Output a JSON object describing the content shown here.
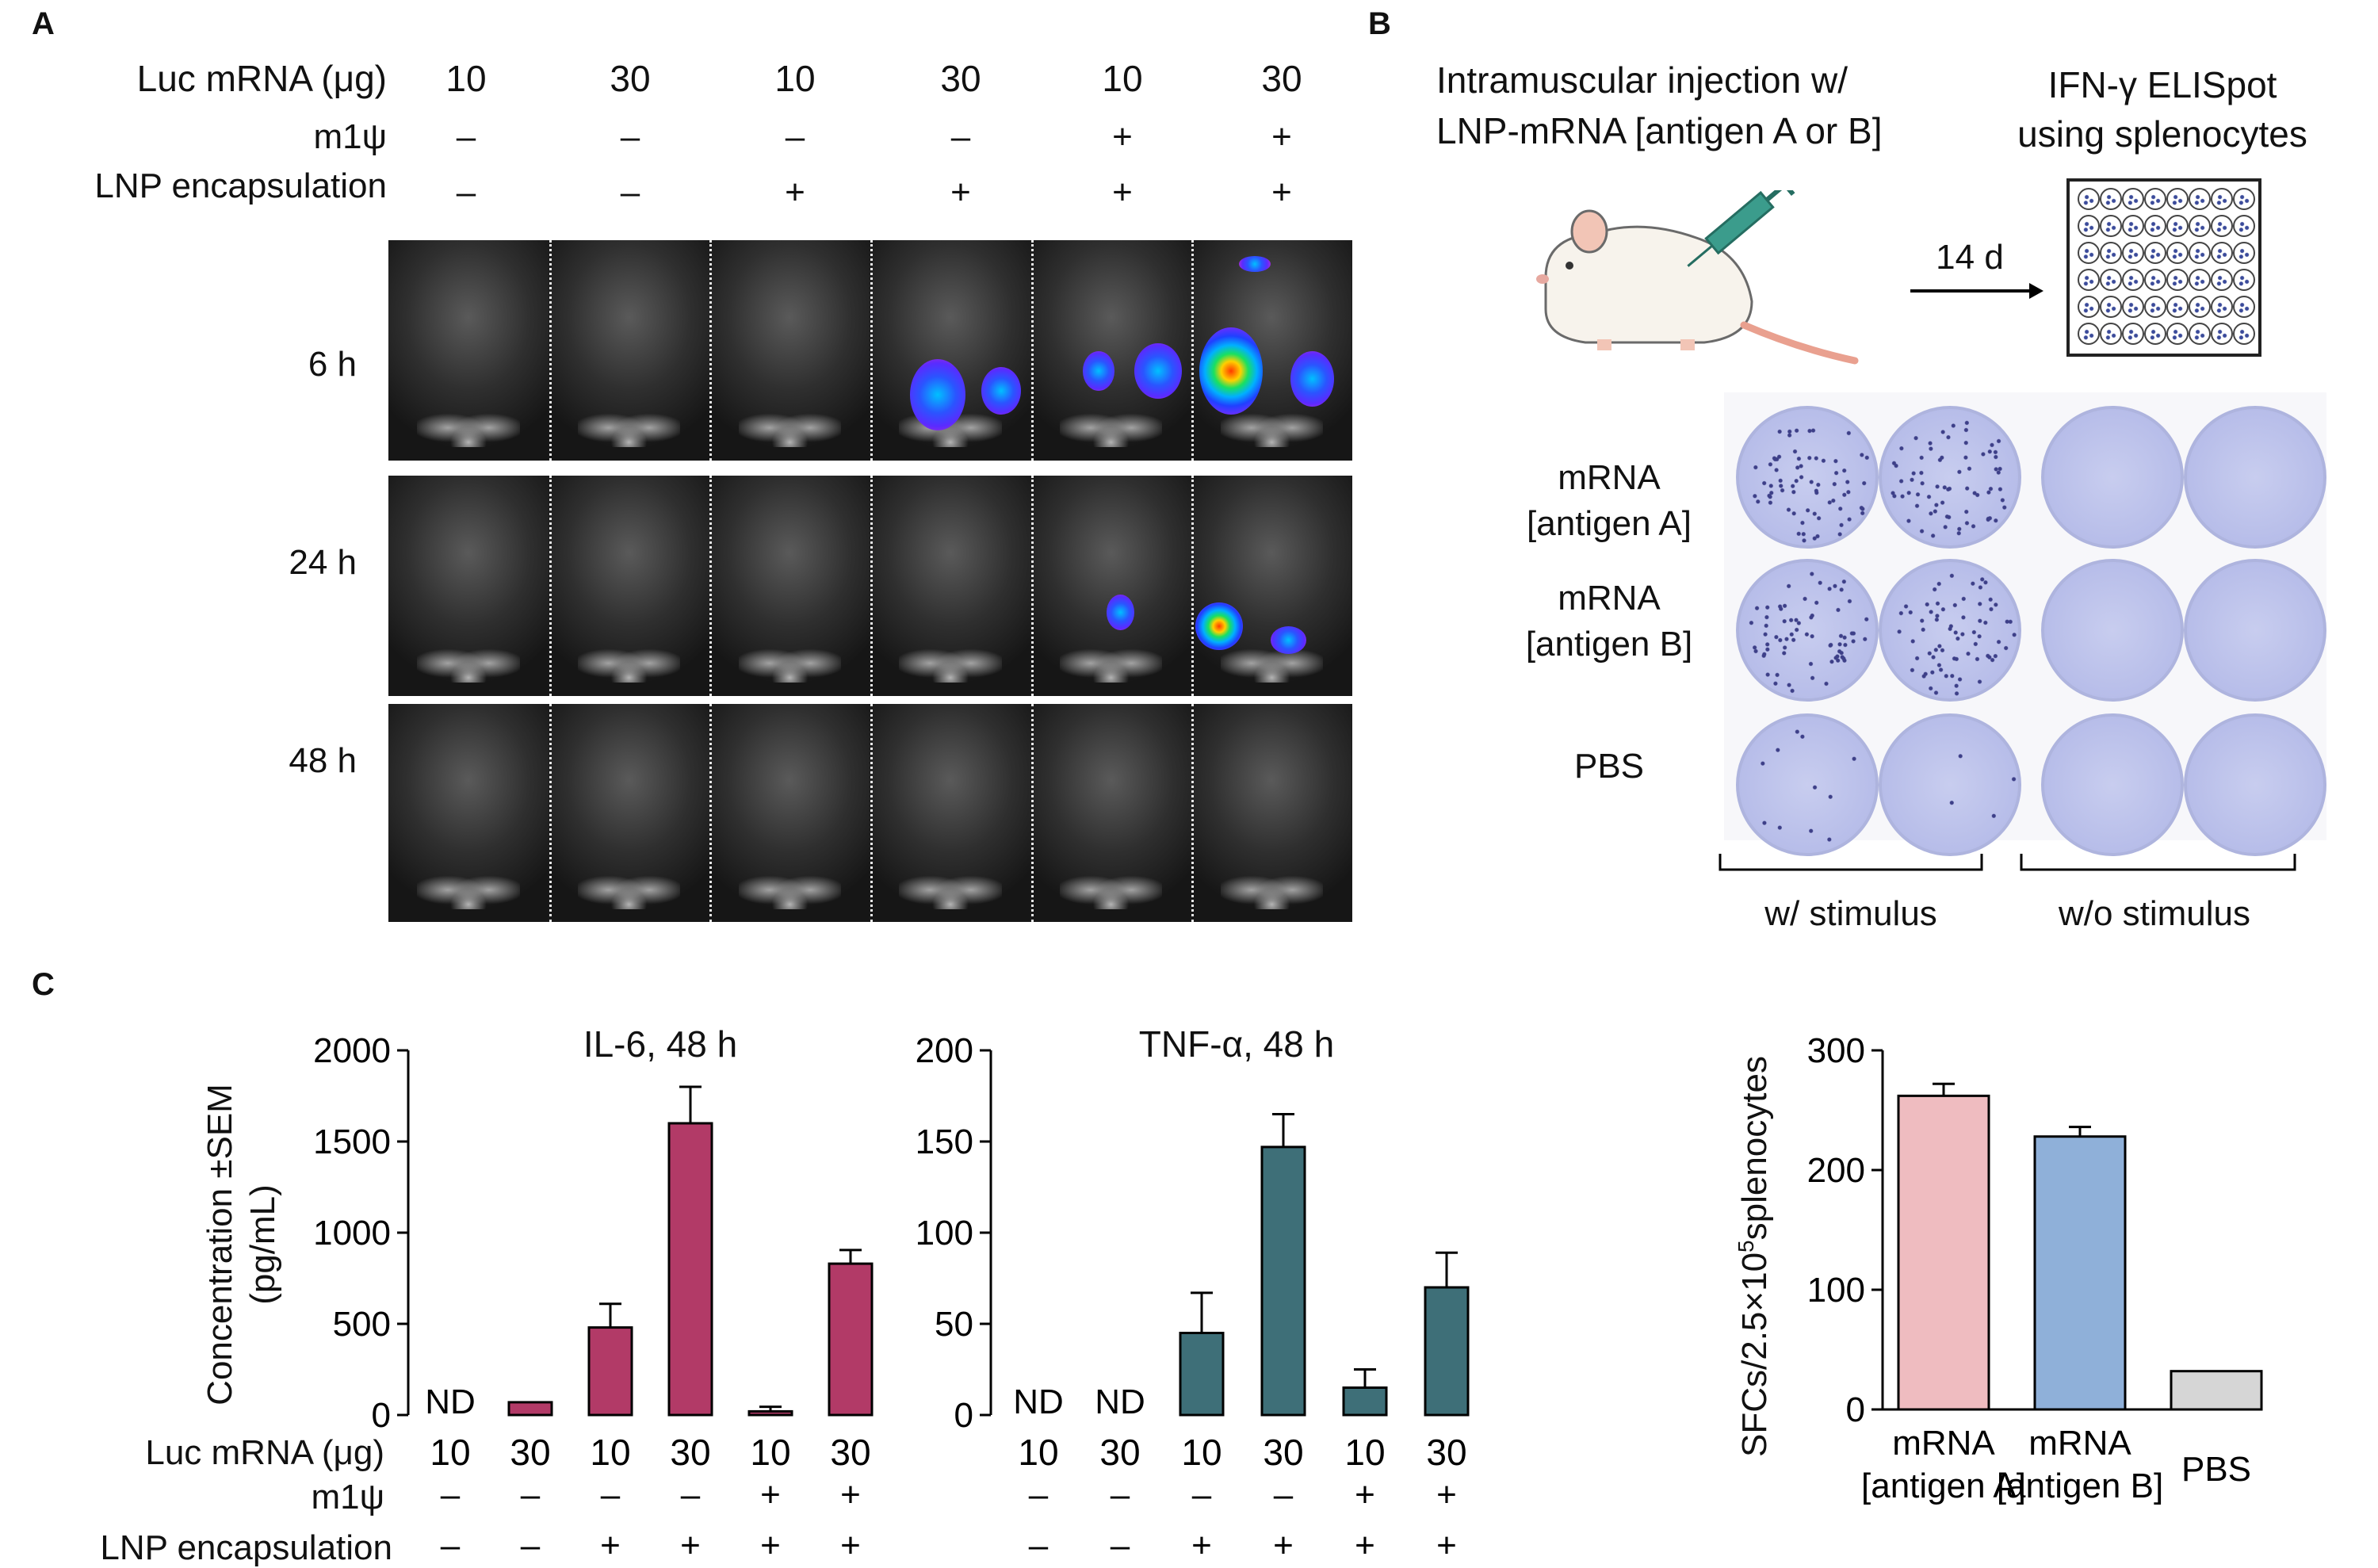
{
  "panel_a": {
    "letter": "A",
    "row_labels": {
      "luc": "Luc mRNA  (μg)",
      "m1psi": "m1ψ",
      "lnp": "LNP encapsulation"
    },
    "columns": [
      {
        "dose": "10",
        "m1psi": "–",
        "lnp": "–"
      },
      {
        "dose": "30",
        "m1psi": "–",
        "lnp": "–"
      },
      {
        "dose": "10",
        "m1psi": "–",
        "lnp": "+"
      },
      {
        "dose": "30",
        "m1psi": "–",
        "lnp": "+"
      },
      {
        "dose": "10",
        "m1psi": "+",
        "lnp": "+"
      },
      {
        "dose": "30",
        "m1psi": "+",
        "lnp": "+"
      }
    ],
    "timepoints": [
      "6 h",
      "24 h",
      "48 h"
    ]
  },
  "panel_b": {
    "letter": "B",
    "injection_text": [
      "Intramuscular injection w/",
      "LNP-mRNA [antigen A or B]"
    ],
    "elispot_text": [
      "IFN-γ ELISpot",
      "using splenocytes"
    ],
    "arrow_label": "14 d",
    "row_labels": [
      [
        "mRNA",
        "[antigen A]"
      ],
      [
        "mRNA",
        "[antigen B]"
      ],
      [
        "PBS"
      ]
    ],
    "group_labels": [
      "w/ stimulus",
      "w/o stimulus"
    ]
  },
  "panel_c": {
    "letter": "C",
    "y_axis_label": [
      "Concentration ±SEM",
      "(pg/mL)"
    ],
    "x_rows": {
      "luc": "Luc mRNA (μg)",
      "m1psi": "m1ψ",
      "lnp": "LNP encapsulation"
    },
    "x_columns": [
      {
        "dose": "10",
        "m1psi": "–",
        "lnp": "–"
      },
      {
        "dose": "30",
        "m1psi": "–",
        "lnp": "–"
      },
      {
        "dose": "10",
        "m1psi": "–",
        "lnp": "+"
      },
      {
        "dose": "30",
        "m1psi": "–",
        "lnp": "+"
      },
      {
        "dose": "10",
        "m1psi": "+",
        "lnp": "+"
      },
      {
        "dose": "30",
        "m1psi": "+",
        "lnp": "+"
      }
    ],
    "nd_label": "ND"
  },
  "chart_data": [
    {
      "type": "bar",
      "title": "IL-6, 48 h",
      "ylabel": "Concentration ±SEM (pg/mL)",
      "categories": [
        "10 / – / –",
        "30 / – / –",
        "10 / – / +",
        "30 / – / +",
        "10 / + / +",
        "30 / + / +"
      ],
      "values": [
        0,
        70,
        480,
        1600,
        20,
        830
      ],
      "errors": [
        0,
        0,
        130,
        200,
        25,
        75
      ],
      "not_detected": [
        true,
        false,
        false,
        false,
        false,
        false
      ],
      "ylim": [
        0,
        2000
      ],
      "yticks": [
        0,
        500,
        1000,
        1500,
        2000
      ],
      "color": "#b23a67"
    },
    {
      "type": "bar",
      "title": "TNF-α, 48 h",
      "categories": [
        "10 / – / –",
        "30 / – / –",
        "10 / – / +",
        "30 / – / +",
        "10 / + / +",
        "30 / + / +"
      ],
      "values": [
        0,
        0,
        45,
        147,
        15,
        70
      ],
      "errors": [
        0,
        0,
        22,
        18,
        10,
        19
      ],
      "not_detected": [
        true,
        true,
        false,
        false,
        false,
        false
      ],
      "ylim": [
        0,
        200
      ],
      "yticks": [
        0,
        50,
        100,
        150,
        200
      ],
      "color": "#3e6f78"
    },
    {
      "type": "bar",
      "title": "",
      "ylabel": "SFCs/2.5×10⁵splenocytes",
      "ylabel_parts": {
        "pre": "SFCs/2.5×10",
        "sup": "5",
        "post": "splenocytes"
      },
      "categories": [
        [
          "mRNA",
          "[antigen A]"
        ],
        [
          "mRNA",
          "[antigen B]"
        ],
        [
          "PBS"
        ]
      ],
      "values": [
        262,
        228,
        32
      ],
      "errors": [
        10,
        8,
        0
      ],
      "ylim": [
        0,
        300
      ],
      "yticks": [
        0,
        100,
        200,
        300
      ],
      "colors": [
        "#efbcc0",
        "#8fb0d9",
        "#d6d6d6"
      ]
    }
  ]
}
